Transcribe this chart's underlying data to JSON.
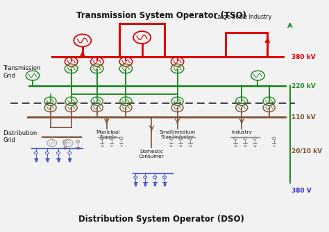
{
  "title_top": "Transmission System Operator (TSO)",
  "title_bottom": "Distribution System Operator (DSO)",
  "bg_color": "#f2f2f2",
  "red": "#dd0000",
  "green": "#228B22",
  "brown": "#7B5030",
  "blue": "#3333cc",
  "black": "#111111",
  "gray": "#999999",
  "lgray": "#aaaaaa",
  "labels": {
    "transmission_grid": "Transmission\nGrid",
    "distribution_grid": "Distribution\nGrid",
    "large_scale": "Large Scale Industry",
    "municipal": "Municipal\nSupply",
    "small_medium": "Small/medium\nSize industry",
    "industry": "Industry",
    "domestic": "Domestic\nConsumer",
    "kv380_top": "380 kV",
    "kv220": "220 kV",
    "kv110": "110 kV",
    "kv20_10": "20/10 kV",
    "v380_bot": "380 V"
  }
}
